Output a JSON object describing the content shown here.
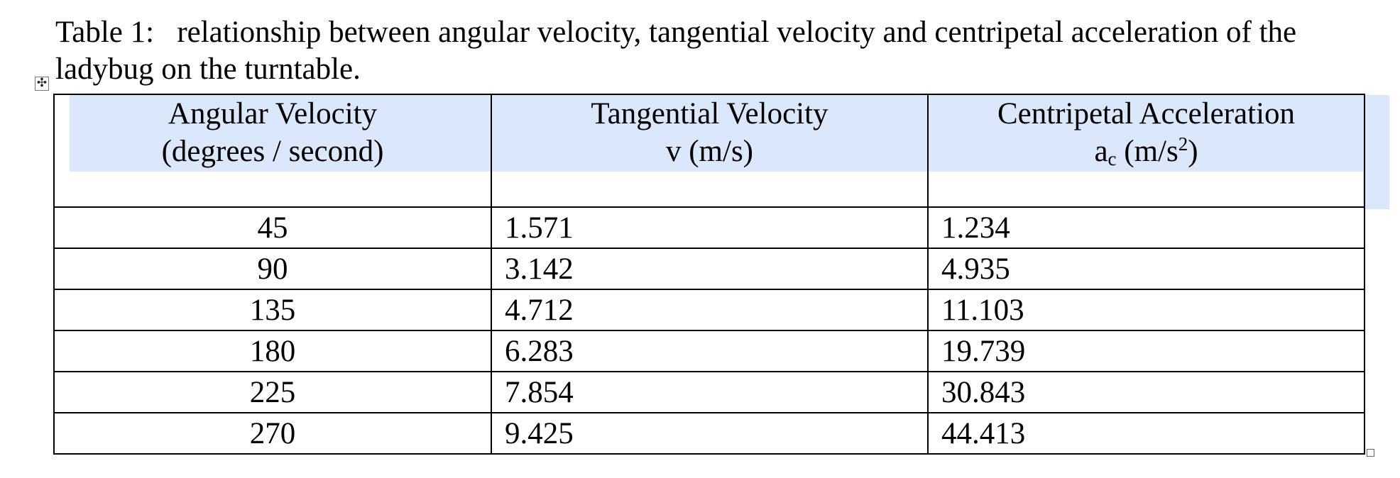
{
  "caption": "Table 1:   relationship between angular velocity, tangential velocity and centripetal acceleration of the ladybug on the turntable.",
  "handles": {
    "move_glyph": "✣",
    "move_icon": "move-cross-icon",
    "resize_icon": "resize-square-icon"
  },
  "colors": {
    "header_shade": "#dbe8fb",
    "border": "#000000"
  },
  "table": {
    "headers": [
      {
        "line1": "Angular Velocity",
        "line2": "(degrees / second)"
      },
      {
        "line1": "Tangential Velocity",
        "line2": "v (m/s)"
      },
      {
        "line1": "Centripetal Acceleration",
        "line2_symbol": "a",
        "line2_sub": "c",
        "line2_unit_pre": " (m/s",
        "line2_sup": "2",
        "line2_unit_post": ")"
      }
    ],
    "rows": [
      [
        "45",
        "1.571",
        "1.234"
      ],
      [
        "90",
        "3.142",
        "4.935"
      ],
      [
        "135",
        "4.712",
        "11.103"
      ],
      [
        "180",
        "6.283",
        "19.739"
      ],
      [
        "225",
        "7.854",
        "30.843"
      ],
      [
        "270",
        "9.425",
        "44.413"
      ]
    ]
  }
}
